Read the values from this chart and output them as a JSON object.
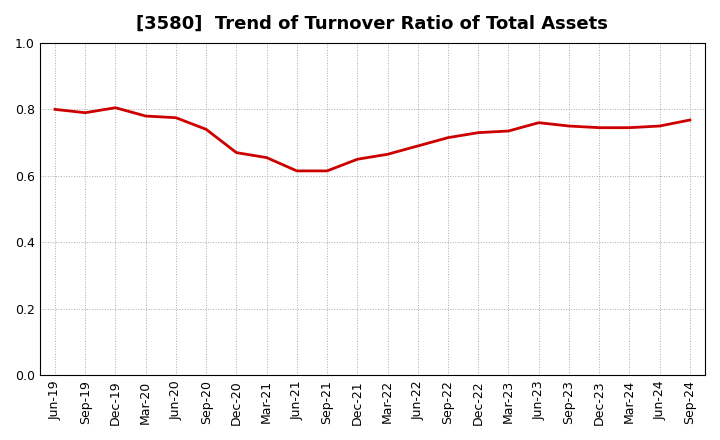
{
  "title": "[3580]  Trend of Turnover Ratio of Total Assets",
  "x_labels": [
    "Jun-19",
    "Sep-19",
    "Dec-19",
    "Mar-20",
    "Jun-20",
    "Sep-20",
    "Dec-20",
    "Mar-21",
    "Jun-21",
    "Sep-21",
    "Dec-21",
    "Mar-22",
    "Jun-22",
    "Sep-22",
    "Dec-22",
    "Mar-23",
    "Jun-23",
    "Sep-23",
    "Dec-23",
    "Mar-24",
    "Jun-24",
    "Sep-24"
  ],
  "y_values": [
    0.8,
    0.79,
    0.805,
    0.78,
    0.775,
    0.74,
    0.67,
    0.655,
    0.615,
    0.615,
    0.65,
    0.665,
    0.69,
    0.715,
    0.73,
    0.735,
    0.76,
    0.75,
    0.745,
    0.745,
    0.75,
    0.768
  ],
  "line_color": "#CC0000",
  "line_width": 2.0,
  "background_color": "#ffffff",
  "plot_bg_color": "#ffffff",
  "grid_color": "#aaaaaa",
  "grid_style": "dotted",
  "ylim": [
    0.0,
    1.0
  ],
  "yticks": [
    0.0,
    0.2,
    0.4,
    0.6,
    0.8,
    1.0
  ],
  "title_fontsize": 13,
  "tick_fontsize": 9
}
